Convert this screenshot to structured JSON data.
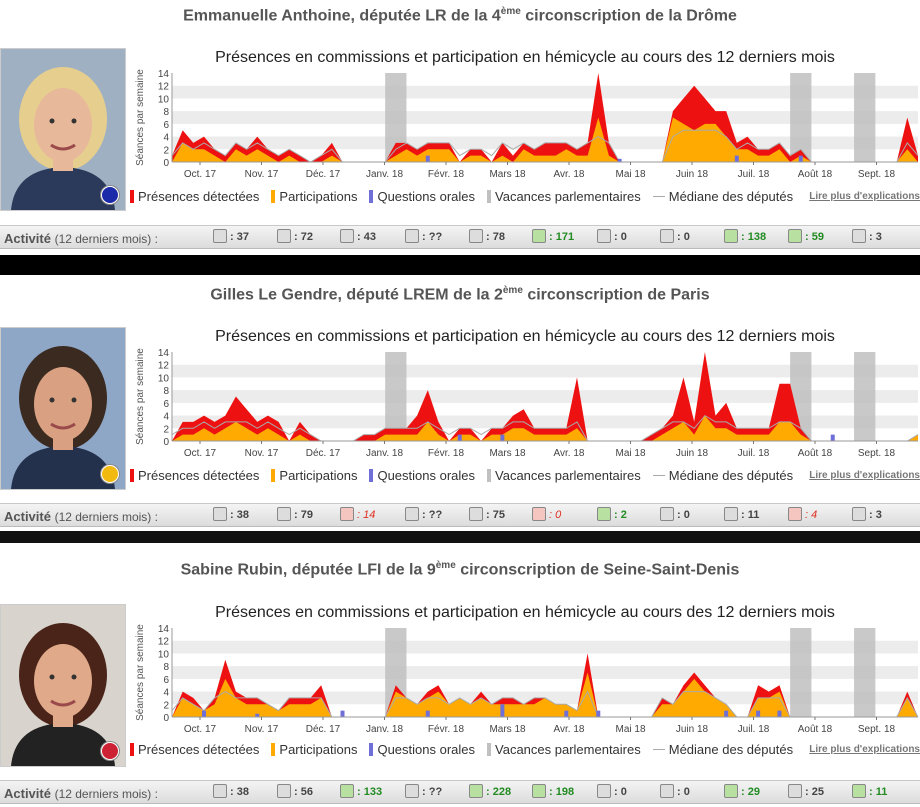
{
  "chart_title": "Présences en commissions et participation en hémicycle au cours des 12 derniers mois",
  "legend": {
    "presences": "Présences détectées",
    "participations": "Participations",
    "questions": "Questions orales",
    "vacances": "Vacances parlementaires",
    "mediane": "Médiane des députés",
    "more": "Lire plus d'explications"
  },
  "colors": {
    "presences": "#ee1111",
    "participations": "#ffaa00",
    "questions": "#6f6fd8",
    "vacances": "#c0c0c0",
    "mediane": "#aaaaaa"
  },
  "activity_label": "Activité",
  "activity_sub": "(12 derniers mois) :",
  "chart_data": [
    {
      "type": "area",
      "ylabel": "Séances par semaine",
      "ylim": [
        0,
        14
      ],
      "yticks": [
        "0",
        "2",
        "4",
        "6",
        "8",
        "10",
        "12",
        "14"
      ],
      "months": [
        "Oct. 17",
        "Nov. 17",
        "Déc. 17",
        "Janv. 18",
        "Févr. 18",
        "Mars 18",
        "Avr. 18",
        "Mai 18",
        "Juin 18",
        "Juil. 18",
        "Août 18",
        "Sept. 18"
      ],
      "series": [
        {
          "name": "Présences détectées",
          "values": [
            1,
            5,
            3,
            4,
            2,
            1,
            3,
            2,
            4,
            2,
            1,
            2,
            1,
            0,
            1,
            3,
            0,
            0,
            0,
            0,
            0,
            3,
            3,
            2,
            3,
            3,
            3,
            0,
            2,
            2,
            0,
            3,
            1,
            3,
            2,
            3,
            3,
            3,
            2,
            3,
            14,
            3,
            0,
            0,
            0,
            0,
            0,
            8,
            10,
            12,
            10,
            8,
            8,
            3,
            4,
            2,
            2,
            3,
            1,
            2,
            0,
            0,
            0,
            0,
            0,
            0,
            0,
            0,
            0,
            7,
            1
          ]
        },
        {
          "name": "Participations",
          "values": [
            0,
            3,
            2,
            2,
            1,
            0,
            2,
            1,
            2,
            1,
            0,
            1,
            0,
            0,
            0,
            1,
            0,
            0,
            0,
            0,
            0,
            1,
            2,
            1,
            2,
            2,
            2,
            0,
            1,
            1,
            0,
            1,
            0,
            2,
            1,
            1,
            1,
            2,
            1,
            1,
            7,
            1,
            0,
            0,
            0,
            0,
            0,
            7,
            6,
            5,
            6,
            6,
            4,
            2,
            2,
            1,
            1,
            2,
            0,
            1,
            0,
            0,
            0,
            0,
            0,
            0,
            0,
            0,
            0,
            2,
            0
          ]
        }
      ],
      "questions": [
        {
          "x": 24,
          "v": 1
        },
        {
          "x": 42,
          "v": 0.5
        },
        {
          "x": 53,
          "v": 1
        },
        {
          "x": 59,
          "v": 1
        }
      ],
      "median": [
        1,
        3,
        2,
        3,
        2,
        1,
        3,
        2,
        3,
        2,
        1,
        2,
        1,
        0,
        1,
        2,
        0,
        0,
        0,
        0,
        0,
        2,
        3,
        2,
        3,
        3,
        3,
        1,
        2,
        2,
        1,
        3,
        2,
        3,
        2,
        3,
        3,
        3,
        2,
        3,
        4,
        3,
        0,
        0,
        0,
        0,
        0,
        4,
        5,
        5,
        5,
        5,
        4,
        2,
        3,
        2,
        2,
        3,
        1,
        2,
        0,
        0,
        0,
        0,
        0,
        0,
        0,
        0,
        0,
        3,
        1
      ],
      "vacations": [
        [
          20,
          22
        ],
        [
          58,
          60
        ],
        [
          64,
          66
        ]
      ],
      "deputy": {
        "name_pre": "Emmanuelle Anthoine, députée LR de la 4",
        "ordinal": "ème",
        "name_post": " circonscription de la Drôme",
        "party_color": "#1a2aa8",
        "stats": [
          {
            "icon": "semaine-icon",
            "value": ": 37",
            "kind": "neutral"
          },
          {
            "icon": "commission-presence-icon",
            "value": ": 72",
            "kind": "neutral"
          },
          {
            "icon": "commission-intervention-icon",
            "value": ": 43",
            "kind": "neutral"
          },
          {
            "icon": "hemicycle-short-icon",
            "value": ": ??",
            "kind": "neutral"
          },
          {
            "icon": "hemicycle-long-icon",
            "value": ": 78",
            "kind": "neutral"
          },
          {
            "icon": "amendements-proposes-icon",
            "value": ": 171",
            "kind": "good"
          },
          {
            "icon": "rapports-icon",
            "value": ": 0",
            "kind": "neutral"
          },
          {
            "icon": "propositions-ecrites-icon",
            "value": ": 0",
            "kind": "neutral"
          },
          {
            "icon": "propositions-signees-icon",
            "value": ": 138",
            "kind": "good"
          },
          {
            "icon": "questions-ecrites-icon",
            "value": ": 59",
            "kind": "good"
          },
          {
            "icon": "questions-orales-icon",
            "value": ": 3",
            "kind": "neutral"
          }
        ]
      }
    },
    {
      "type": "area",
      "ylabel": "Séances par semaine",
      "ylim": [
        0,
        14
      ],
      "yticks": [
        "0",
        "2",
        "4",
        "6",
        "8",
        "10",
        "12",
        "14"
      ],
      "months": [
        "Oct. 17",
        "Nov. 17",
        "Déc. 17",
        "Janv. 18",
        "Févr. 18",
        "Mars 18",
        "Avr. 18",
        "Mai 18",
        "Juin 18",
        "Juil. 18",
        "Août 18",
        "Sept. 18"
      ],
      "series": [
        {
          "name": "Présences détectées",
          "values": [
            0,
            3,
            3,
            4,
            3,
            4,
            7,
            5,
            3,
            4,
            3,
            0,
            3,
            1,
            0,
            0,
            0,
            0,
            1,
            1,
            2,
            2,
            2,
            4,
            8,
            3,
            0,
            2,
            2,
            0,
            2,
            2,
            4,
            5,
            2,
            2,
            2,
            2,
            10,
            0,
            0,
            0,
            0,
            0,
            0,
            1,
            2,
            4,
            10,
            3,
            14,
            4,
            6,
            2,
            2,
            2,
            2,
            9,
            9,
            2,
            0,
            0,
            0,
            0,
            0,
            0,
            0,
            0,
            0,
            0,
            1
          ]
        },
        {
          "name": "Participations",
          "values": [
            0,
            1,
            1,
            2,
            1,
            2,
            3,
            2,
            1,
            2,
            1,
            0,
            1,
            0,
            0,
            0,
            0,
            0,
            0,
            0,
            1,
            1,
            1,
            1,
            3,
            1,
            0,
            1,
            1,
            0,
            1,
            1,
            2,
            2,
            1,
            1,
            1,
            1,
            2,
            0,
            0,
            0,
            0,
            0,
            0,
            0,
            1,
            2,
            3,
            1,
            4,
            2,
            2,
            1,
            1,
            1,
            1,
            3,
            3,
            1,
            0,
            0,
            0,
            0,
            0,
            0,
            0,
            0,
            0,
            0,
            1
          ]
        }
      ],
      "questions": [
        {
          "x": 27,
          "v": 1
        },
        {
          "x": 31,
          "v": 1
        },
        {
          "x": 62,
          "v": 1
        }
      ],
      "median": [
        1,
        2,
        2,
        3,
        2,
        3,
        3,
        3,
        2,
        3,
        2,
        1,
        2,
        1,
        0,
        0,
        0,
        0,
        1,
        1,
        2,
        2,
        2,
        2,
        3,
        2,
        1,
        2,
        2,
        1,
        2,
        2,
        3,
        3,
        2,
        2,
        2,
        2,
        3,
        0,
        0,
        0,
        0,
        0,
        0,
        1,
        2,
        3,
        3,
        2,
        4,
        3,
        3,
        2,
        2,
        2,
        2,
        3,
        3,
        2,
        0,
        0,
        0,
        0,
        0,
        0,
        0,
        0,
        0,
        0,
        1
      ],
      "vacations": [
        [
          20,
          22
        ],
        [
          58,
          60
        ],
        [
          64,
          66
        ]
      ],
      "deputy": {
        "name_pre": "Gilles Le Gendre, député LREM de la 2",
        "ordinal": "ème",
        "name_post": " circonscription de Paris",
        "party_color": "#f2b90f",
        "stats": [
          {
            "icon": "semaine-icon",
            "value": ": 38",
            "kind": "neutral"
          },
          {
            "icon": "commission-presence-icon",
            "value": ": 79",
            "kind": "neutral"
          },
          {
            "icon": "commission-intervention-icon",
            "value": ": 14",
            "kind": "bad"
          },
          {
            "icon": "hemicycle-short-icon",
            "value": ": ??",
            "kind": "neutral"
          },
          {
            "icon": "hemicycle-long-icon",
            "value": ": 75",
            "kind": "neutral"
          },
          {
            "icon": "amendements-proposes-icon",
            "value": ": 0",
            "kind": "bad"
          },
          {
            "icon": "rapports-icon",
            "value": ": 2",
            "kind": "good"
          },
          {
            "icon": "propositions-ecrites-icon",
            "value": ": 0",
            "kind": "neutral"
          },
          {
            "icon": "propositions-signees-icon",
            "value": ": 11",
            "kind": "neutral"
          },
          {
            "icon": "questions-ecrites-icon",
            "value": ": 4",
            "kind": "bad"
          },
          {
            "icon": "questions-orales-icon",
            "value": ": 3",
            "kind": "neutral"
          }
        ]
      }
    },
    {
      "type": "area",
      "ylabel": "Séances par semaine",
      "ylim": [
        0,
        14
      ],
      "yticks": [
        "0",
        "2",
        "4",
        "6",
        "8",
        "10",
        "12",
        "14"
      ],
      "months": [
        "Oct. 17",
        "Nov. 17",
        "Déc. 17",
        "Janv. 18",
        "Févr. 18",
        "Mars 18",
        "Avr. 18",
        "Mai 18",
        "Juin 18",
        "Juil. 18",
        "Août 18",
        "Sept. 18"
      ],
      "series": [
        {
          "name": "Présences détectées",
          "values": [
            0,
            4,
            3,
            1,
            3,
            9,
            4,
            3,
            3,
            2,
            1,
            3,
            3,
            3,
            5,
            0,
            0,
            0,
            0,
            0,
            0,
            5,
            3,
            2,
            4,
            5,
            2,
            3,
            2,
            4,
            2,
            3,
            3,
            2,
            3,
            3,
            2,
            2,
            1,
            10,
            0,
            0,
            0,
            0,
            0,
            0,
            3,
            2,
            5,
            7,
            5,
            3,
            2,
            0,
            0,
            5,
            4,
            5,
            0,
            0,
            0,
            0,
            0,
            0,
            0,
            0,
            0,
            0,
            0,
            4,
            0
          ]
        },
        {
          "name": "Participations",
          "values": [
            0,
            3,
            2,
            1,
            2,
            6,
            3,
            2,
            2,
            2,
            1,
            2,
            2,
            2,
            3,
            0,
            0,
            0,
            0,
            0,
            0,
            4,
            3,
            2,
            3,
            4,
            2,
            3,
            2,
            3,
            2,
            2,
            2,
            2,
            2,
            3,
            2,
            2,
            1,
            7,
            0,
            0,
            0,
            0,
            0,
            0,
            2,
            2,
            4,
            6,
            4,
            3,
            2,
            0,
            0,
            3,
            3,
            4,
            0,
            0,
            0,
            0,
            0,
            0,
            0,
            0,
            0,
            0,
            0,
            3,
            0
          ]
        }
      ],
      "questions": [
        {
          "x": 3,
          "v": 1
        },
        {
          "x": 8,
          "v": 0.5
        },
        {
          "x": 16,
          "v": 1
        },
        {
          "x": 24,
          "v": 1
        },
        {
          "x": 31,
          "v": 2
        },
        {
          "x": 37,
          "v": 1
        },
        {
          "x": 40,
          "v": 1
        },
        {
          "x": 52,
          "v": 1
        },
        {
          "x": 55,
          "v": 1
        },
        {
          "x": 57,
          "v": 1
        }
      ],
      "median": [
        1,
        3,
        2,
        1,
        3,
        4,
        3,
        3,
        3,
        2,
        1,
        3,
        3,
        3,
        3,
        0,
        0,
        0,
        0,
        0,
        0,
        3,
        3,
        2,
        3,
        3,
        2,
        3,
        2,
        3,
        2,
        3,
        3,
        2,
        3,
        3,
        2,
        2,
        1,
        4,
        0,
        0,
        0,
        0,
        0,
        0,
        3,
        2,
        4,
        4,
        4,
        3,
        2,
        0,
        0,
        3,
        3,
        3,
        0,
        0,
        0,
        0,
        0,
        0,
        0,
        0,
        0,
        0,
        0,
        3,
        0
      ],
      "vacations": [
        [
          20,
          22
        ],
        [
          58,
          60
        ],
        [
          64,
          66
        ]
      ],
      "deputy": {
        "name_pre": "Sabine Rubin, députée LFI de la 9",
        "ordinal": "ème",
        "name_post": " circonscription de Seine-Saint-Denis",
        "party_color": "#cc2233",
        "stats": [
          {
            "icon": "semaine-icon",
            "value": ": 38",
            "kind": "neutral"
          },
          {
            "icon": "commission-presence-icon",
            "value": ": 56",
            "kind": "neutral"
          },
          {
            "icon": "commission-intervention-icon",
            "value": ": 133",
            "kind": "good"
          },
          {
            "icon": "hemicycle-short-icon",
            "value": ": ??",
            "kind": "neutral"
          },
          {
            "icon": "hemicycle-long-icon",
            "value": ": 228",
            "kind": "good"
          },
          {
            "icon": "amendements-proposes-icon",
            "value": ": 198",
            "kind": "good"
          },
          {
            "icon": "rapports-icon",
            "value": ": 0",
            "kind": "neutral"
          },
          {
            "icon": "propositions-ecrites-icon",
            "value": ": 0",
            "kind": "neutral"
          },
          {
            "icon": "propositions-signees-icon",
            "value": ": 29",
            "kind": "good"
          },
          {
            "icon": "questions-ecrites-icon",
            "value": ": 25",
            "kind": "neutral"
          },
          {
            "icon": "questions-orales-icon",
            "value": ": 11",
            "kind": "good"
          }
        ]
      }
    }
  ]
}
